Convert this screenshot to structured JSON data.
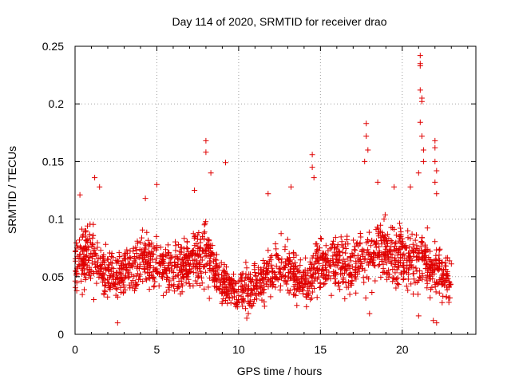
{
  "chart_data": {
    "type": "scatter",
    "title": "Day 114 of 2020, SRMTID for receiver drao",
    "xlabel": "GPS time / hours",
    "ylabel": "SRMTID / TECUs",
    "xlim": [
      0,
      24.5
    ],
    "ylim": [
      0,
      0.25
    ],
    "xticks": [
      0,
      5,
      10,
      15,
      20
    ],
    "yticks": [
      0,
      0.05,
      0.1,
      0.15,
      0.2,
      0.25
    ],
    "xtick_labels": [
      "0",
      "5",
      "10",
      "15",
      "20"
    ],
    "ytick_labels": [
      "0",
      "0.05",
      "0.1",
      "0.15",
      "0.2",
      "0.25"
    ],
    "grid": true,
    "marker": "+",
    "color": "#e00000",
    "points_description": "dense cloud of ~2000 observations spanning 0-23 h, mostly 0.02-0.10 TECU, with spikes up to ~0.24 near 21 h",
    "trend": [
      {
        "x": 0,
        "mean": 0.058,
        "spread": 0.022
      },
      {
        "x": 1,
        "mean": 0.07,
        "spread": 0.025
      },
      {
        "x": 2,
        "mean": 0.048,
        "spread": 0.02
      },
      {
        "x": 3,
        "mean": 0.055,
        "spread": 0.02
      },
      {
        "x": 4,
        "mean": 0.065,
        "spread": 0.022
      },
      {
        "x": 5,
        "mean": 0.062,
        "spread": 0.022
      },
      {
        "x": 6,
        "mean": 0.055,
        "spread": 0.02
      },
      {
        "x": 7,
        "mean": 0.062,
        "spread": 0.022
      },
      {
        "x": 8,
        "mean": 0.072,
        "spread": 0.025
      },
      {
        "x": 9,
        "mean": 0.045,
        "spread": 0.018
      },
      {
        "x": 10,
        "mean": 0.038,
        "spread": 0.016
      },
      {
        "x": 11,
        "mean": 0.042,
        "spread": 0.016
      },
      {
        "x": 12,
        "mean": 0.055,
        "spread": 0.02
      },
      {
        "x": 13,
        "mean": 0.058,
        "spread": 0.02
      },
      {
        "x": 14,
        "mean": 0.045,
        "spread": 0.018
      },
      {
        "x": 15,
        "mean": 0.06,
        "spread": 0.022
      },
      {
        "x": 16,
        "mean": 0.062,
        "spread": 0.022
      },
      {
        "x": 17,
        "mean": 0.06,
        "spread": 0.022
      },
      {
        "x": 18,
        "mean": 0.068,
        "spread": 0.024
      },
      {
        "x": 19,
        "mean": 0.072,
        "spread": 0.024
      },
      {
        "x": 20,
        "mean": 0.068,
        "spread": 0.024
      },
      {
        "x": 21,
        "mean": 0.065,
        "spread": 0.026
      },
      {
        "x": 22,
        "mean": 0.055,
        "spread": 0.022
      },
      {
        "x": 23,
        "mean": 0.048,
        "spread": 0.018
      }
    ],
    "outliers": [
      {
        "x": 0.3,
        "y": 0.121
      },
      {
        "x": 1.2,
        "y": 0.136
      },
      {
        "x": 1.5,
        "y": 0.128
      },
      {
        "x": 4.3,
        "y": 0.118
      },
      {
        "x": 5.0,
        "y": 0.13
      },
      {
        "x": 7.3,
        "y": 0.125
      },
      {
        "x": 8.0,
        "y": 0.168
      },
      {
        "x": 8.0,
        "y": 0.158
      },
      {
        "x": 8.3,
        "y": 0.14
      },
      {
        "x": 9.2,
        "y": 0.149
      },
      {
        "x": 11.8,
        "y": 0.122
      },
      {
        "x": 13.2,
        "y": 0.128
      },
      {
        "x": 14.5,
        "y": 0.156
      },
      {
        "x": 14.5,
        "y": 0.145
      },
      {
        "x": 14.6,
        "y": 0.136
      },
      {
        "x": 17.8,
        "y": 0.183
      },
      {
        "x": 17.8,
        "y": 0.172
      },
      {
        "x": 17.9,
        "y": 0.16
      },
      {
        "x": 17.7,
        "y": 0.15
      },
      {
        "x": 18.5,
        "y": 0.132
      },
      {
        "x": 19.5,
        "y": 0.128
      },
      {
        "x": 20.5,
        "y": 0.128
      },
      {
        "x": 21.1,
        "y": 0.242
      },
      {
        "x": 21.1,
        "y": 0.235
      },
      {
        "x": 21.1,
        "y": 0.233
      },
      {
        "x": 21.1,
        "y": 0.212
      },
      {
        "x": 21.2,
        "y": 0.205
      },
      {
        "x": 21.2,
        "y": 0.202
      },
      {
        "x": 21.1,
        "y": 0.184
      },
      {
        "x": 21.2,
        "y": 0.172
      },
      {
        "x": 21.3,
        "y": 0.16
      },
      {
        "x": 21.3,
        "y": 0.15
      },
      {
        "x": 21.0,
        "y": 0.14
      },
      {
        "x": 22.0,
        "y": 0.168
      },
      {
        "x": 22.0,
        "y": 0.162
      },
      {
        "x": 22.0,
        "y": 0.15
      },
      {
        "x": 22.1,
        "y": 0.142
      },
      {
        "x": 22.0,
        "y": 0.132
      },
      {
        "x": 22.1,
        "y": 0.122
      },
      {
        "x": 21.9,
        "y": 0.012
      },
      {
        "x": 22.1,
        "y": 0.01
      },
      {
        "x": 2.6,
        "y": 0.01
      },
      {
        "x": 10.5,
        "y": 0.014
      },
      {
        "x": 18.0,
        "y": 0.018
      },
      {
        "x": 21.0,
        "y": 0.016
      }
    ]
  }
}
